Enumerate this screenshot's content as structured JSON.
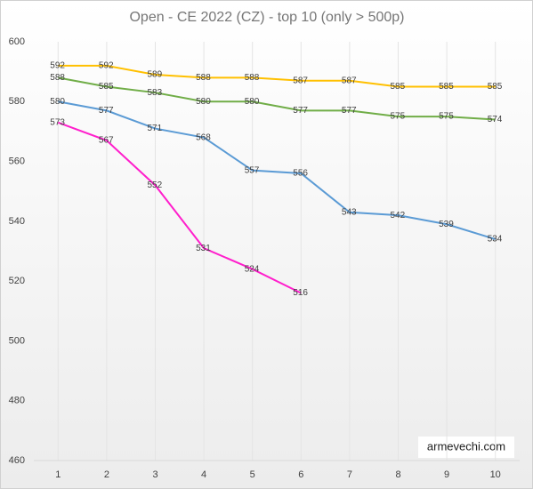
{
  "chart_data": {
    "type": "line",
    "title": "Open - CE 2022 (CZ) - top 10 (only > 500p)",
    "annotation": "armevechi.com",
    "x": [
      1,
      2,
      3,
      4,
      5,
      6,
      7,
      8,
      9,
      10
    ],
    "xlim": [
      0.5,
      10.5
    ],
    "xticks": [
      1,
      2,
      3,
      4,
      5,
      6,
      7,
      8,
      9,
      10
    ],
    "ylim": [
      460,
      600
    ],
    "yticks": [
      460,
      480,
      500,
      520,
      540,
      560,
      580,
      600
    ],
    "grid": true,
    "series": [
      {
        "color": "#ffc000",
        "values": [
          592,
          592,
          589,
          588,
          588,
          587,
          587,
          585,
          585,
          585
        ]
      },
      {
        "color": "#70ad47",
        "values": [
          588,
          585,
          583,
          580,
          580,
          577,
          577,
          575,
          575,
          574
        ]
      },
      {
        "color": "#5b9bd5",
        "values": [
          580,
          577,
          571,
          568,
          557,
          556,
          543,
          542,
          539,
          534
        ]
      },
      {
        "color": "#ff1fcc",
        "values": [
          573,
          567,
          552,
          531,
          524,
          516,
          null,
          null,
          null,
          null
        ]
      }
    ]
  }
}
